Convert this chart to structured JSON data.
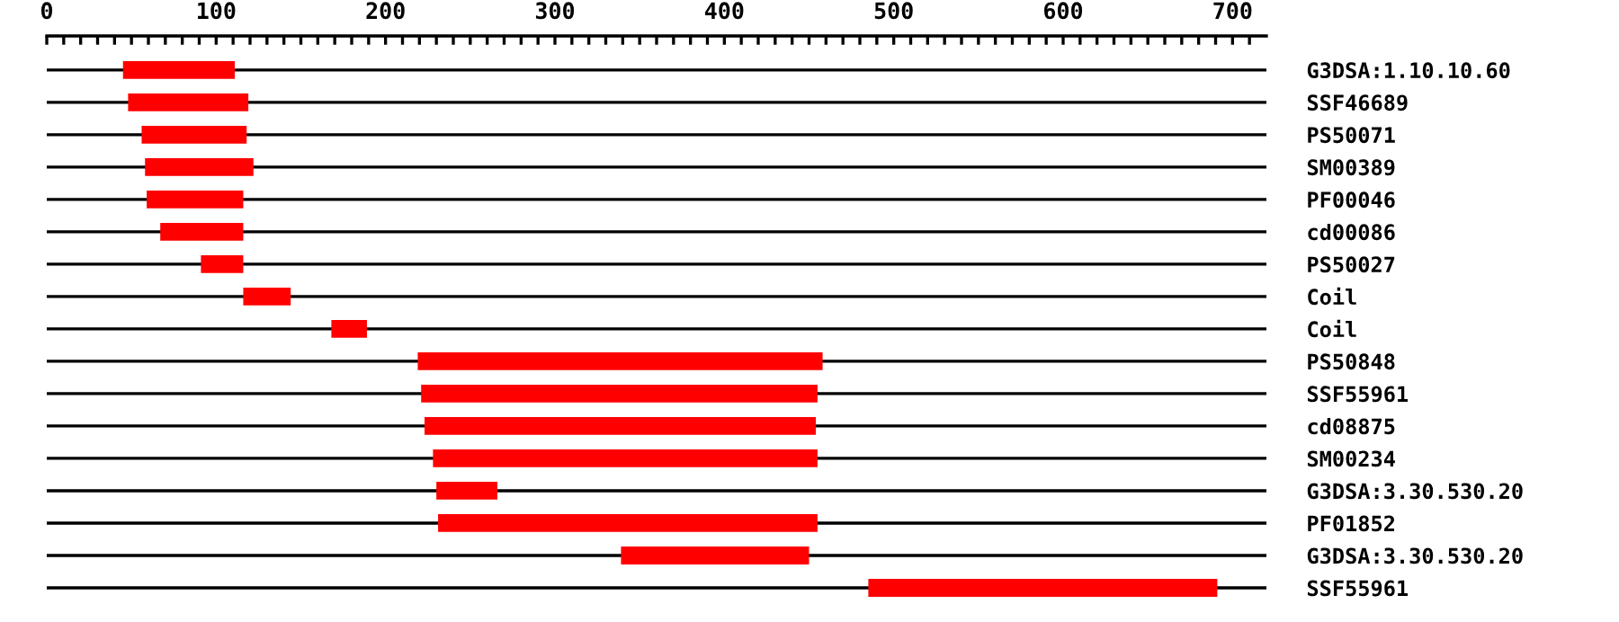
{
  "chart_data": {
    "type": "bar",
    "orientation": "horizontal",
    "categories": [
      "G3DSA:1.10.10.60",
      "SSF46689",
      "PS50071",
      "SM00389",
      "PF00046",
      "cd00086",
      "PS50027",
      "Coil",
      "Coil",
      "PS50848",
      "SSF55961",
      "cd08875",
      "SM00234",
      "G3DSA:3.30.530.20",
      "PF01852",
      "G3DSA:3.30.530.20",
      "SSF55961"
    ],
    "base": [
      45,
      48,
      56,
      58,
      59,
      67,
      91,
      116,
      168,
      219,
      221,
      223,
      228,
      230,
      231,
      339,
      485
    ],
    "values": [
      66,
      71,
      62,
      64,
      57,
      49,
      25,
      28,
      21,
      239,
      234,
      231,
      227,
      36,
      224,
      111,
      206
    ],
    "color": "#ff0000",
    "xlim": [
      0,
      720
    ],
    "xticks": [
      0,
      {
        "value": 10,
        "label": null
      },
      {
        "value": 20,
        "label": null
      },
      {
        "value": 30,
        "label": null
      },
      {
        "value": 40,
        "label": null
      },
      {
        "value": 50,
        "label": null
      },
      {
        "value": 60,
        "label": null
      },
      {
        "value": 70,
        "label": null
      },
      {
        "value": 80,
        "label": null
      },
      {
        "value": 90,
        "label": null
      },
      100,
      {
        "value": 110,
        "label": null
      },
      {
        "value": 120,
        "label": null
      },
      {
        "value": 130,
        "label": null
      },
      {
        "value": 140,
        "label": null
      },
      {
        "value": 150,
        "label": null
      },
      {
        "value": 160,
        "label": null
      },
      {
        "value": 170,
        "label": null
      },
      {
        "value": 180,
        "label": null
      },
      {
        "value": 190,
        "label": null
      },
      200,
      {
        "value": 210,
        "label": null
      },
      {
        "value": 220,
        "label": null
      },
      {
        "value": 230,
        "label": null
      },
      {
        "value": 240,
        "label": null
      },
      {
        "value": 250,
        "label": null
      },
      {
        "value": 260,
        "label": null
      },
      {
        "value": 270,
        "label": null
      },
      {
        "value": 280,
        "label": null
      },
      {
        "value": 290,
        "label": null
      },
      300,
      {
        "value": 310,
        "label": null
      },
      {
        "value": 320,
        "label": null
      },
      {
        "value": 330,
        "label": null
      },
      {
        "value": 340,
        "label": null
      },
      {
        "value": 350,
        "label": null
      },
      {
        "value": 360,
        "label": null
      },
      {
        "value": 370,
        "label": null
      },
      {
        "value": 380,
        "label": null
      },
      {
        "value": 390,
        "label": null
      },
      400,
      {
        "value": 410,
        "label": null
      },
      {
        "value": 420,
        "label": null
      },
      {
        "value": 430,
        "label": null
      },
      {
        "value": 440,
        "label": null
      },
      {
        "value": 450,
        "label": null
      },
      {
        "value": 460,
        "label": null
      },
      {
        "value": 470,
        "label": null
      },
      {
        "value": 480,
        "label": null
      },
      {
        "value": 490,
        "label": null
      },
      500,
      {
        "value": 510,
        "label": null
      },
      {
        "value": 520,
        "label": null
      },
      {
        "value": 530,
        "label": null
      },
      {
        "value": 540,
        "label": null
      },
      {
        "value": 550,
        "label": null
      },
      {
        "value": 560,
        "label": null
      },
      {
        "value": 570,
        "label": null
      },
      {
        "value": 580,
        "label": null
      },
      {
        "value": 590,
        "label": null
      },
      600,
      {
        "value": 610,
        "label": null
      },
      {
        "value": 620,
        "label": null
      },
      {
        "value": 630,
        "label": null
      },
      {
        "value": 640,
        "label": null
      },
      {
        "value": 650,
        "label": null
      },
      {
        "value": 660,
        "label": null
      },
      {
        "value": 670,
        "label": null
      },
      {
        "value": 680,
        "label": null
      },
      {
        "value": 690,
        "label": null
      },
      700,
      {
        "value": 710,
        "label": null
      }
    ],
    "grid": "y"
  }
}
